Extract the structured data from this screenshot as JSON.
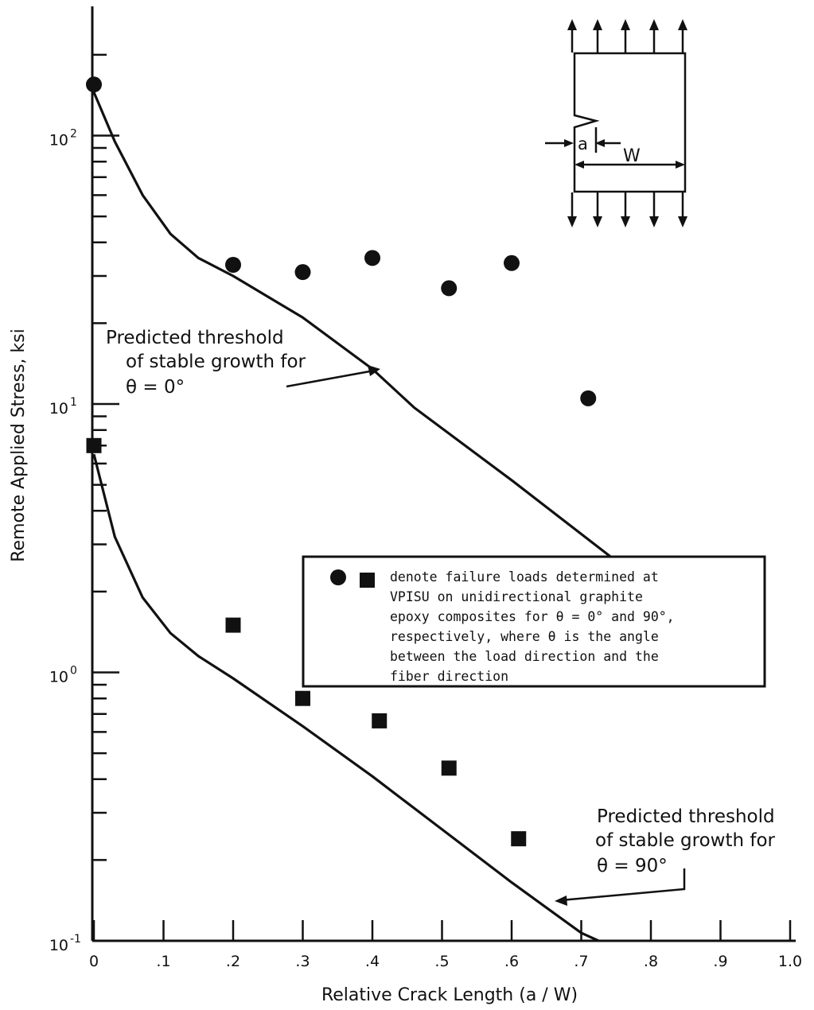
{
  "chart_data": {
    "type": "scatter",
    "title": "",
    "xlabel": "Relative  Crack  Length (a / W)",
    "ylabel": "Remote  Applied  Stress, ksi",
    "xlim": [
      0,
      1.0
    ],
    "ylim": [
      0.1,
      250
    ],
    "yscale": "log",
    "grid": false,
    "x_tick_labels": [
      "0",
      ".1",
      ".2",
      ".3",
      ".4",
      ".5",
      ".6",
      ".7",
      ".8",
      ".9",
      "1.0"
    ],
    "x_tick_values": [
      0,
      0.1,
      0.2,
      0.3,
      0.4,
      0.5,
      0.6,
      0.7,
      0.8,
      0.9,
      1.0
    ],
    "y_tick_labels": [
      {
        "base": "10",
        "exp": "2",
        "value": 100
      },
      {
        "base": "10",
        "exp": "1",
        "value": 10
      },
      {
        "base": "10",
        "exp": "0",
        "value": 1
      },
      {
        "base": "10",
        "exp": "-1",
        "value": 0.1
      }
    ],
    "series": [
      {
        "marker": "circle",
        "x": [
          0.0,
          0.2,
          0.3,
          0.4,
          0.51,
          0.6,
          0.71
        ],
        "y": [
          155,
          33,
          31,
          35,
          27,
          33.5,
          10.5
        ]
      },
      {
        "marker": "square",
        "x": [
          0.0,
          0.2,
          0.3,
          0.41,
          0.51,
          0.61
        ],
        "y": [
          7,
          1.5,
          0.8,
          0.66,
          0.44,
          0.24
        ]
      },
      {
        "marker": "line",
        "x": [
          0.0,
          0.03,
          0.07,
          0.11,
          0.15,
          0.2,
          0.3,
          0.4,
          0.46,
          0.6,
          0.75
        ],
        "y": [
          145,
          95,
          60,
          43,
          35,
          30,
          21,
          13.5,
          9.7,
          5.2,
          2.6
        ]
      },
      {
        "marker": "line",
        "x": [
          0.0,
          0.03,
          0.07,
          0.11,
          0.15,
          0.2,
          0.3,
          0.4,
          0.5,
          0.6,
          0.7,
          0.725
        ],
        "y": [
          6.5,
          3.2,
          1.9,
          1.4,
          1.15,
          0.95,
          0.63,
          0.41,
          0.26,
          0.165,
          0.107,
          0.1
        ]
      }
    ],
    "annotations": [
      {
        "lines": [
          "Predicted threshold",
          "of stable growth for",
          "θ = 0°"
        ]
      },
      {
        "lines": [
          "Predicted threshold",
          "of stable growth for",
          "θ = 90°"
        ]
      }
    ],
    "legend_box": {
      "placement": "center-right",
      "lines": [
        "denote failure loads determined at",
        "VPISU on unidirectional graphite",
        "epoxy composites for θ = 0° and 90°,",
        "respectively, where θ is the angle",
        "between the load direction and the",
        "fiber direction"
      ]
    },
    "specimen_diagram": {
      "crack_label": "a",
      "width_label": "W"
    }
  },
  "colors": {
    "ink": "#111111",
    "background": "#ffffff"
  }
}
